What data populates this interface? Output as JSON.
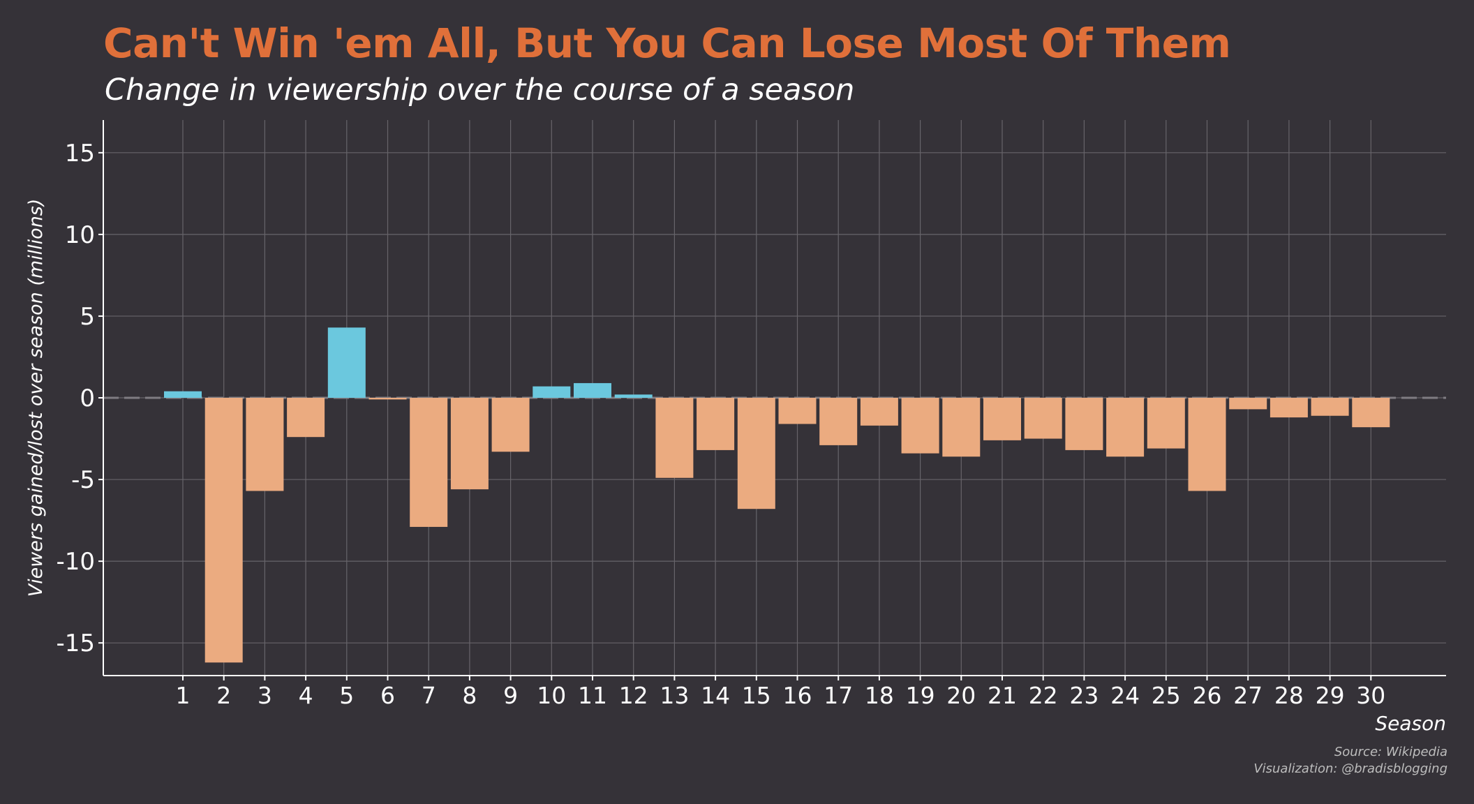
{
  "header": {
    "title": "Can't Win 'em All, But You Can Lose Most Of Them",
    "subtitle": "Change in viewership over the course of a season"
  },
  "footer": {
    "source": "Source: Wikipedia",
    "credit": "Visualization: @bradisblogging"
  },
  "colors": {
    "background": "#353238",
    "title": "#E0703A",
    "positive": "#6BC8DE",
    "negative": "#EBAB80",
    "grid": "#67646A",
    "axis": "#FFFFFF",
    "zero_line": "#7F7C82"
  },
  "chart_data": {
    "type": "bar",
    "title": "Can't Win 'em All, But You Can Lose Most Of Them",
    "subtitle": "Change in viewership over the course of a season",
    "xlabel": "Season",
    "ylabel": "Viewers gained/lost over season (millions)",
    "ylim": [
      -17,
      17
    ],
    "yticks": [
      15,
      10,
      5,
      0,
      -5,
      -10,
      -15
    ],
    "ytick_labels": [
      "15",
      "10",
      "5",
      "0",
      "-5",
      "-10",
      "-15"
    ],
    "grid": true,
    "categories": [
      "1",
      "2",
      "3",
      "4",
      "5",
      "6",
      "7",
      "8",
      "9",
      "10",
      "11",
      "12",
      "13",
      "14",
      "15",
      "16",
      "17",
      "18",
      "19",
      "20",
      "21",
      "22",
      "23",
      "24",
      "25",
      "26",
      "27",
      "28",
      "29",
      "30"
    ],
    "values": [
      0.4,
      -16.2,
      -5.7,
      -2.4,
      4.3,
      -0.1,
      -7.9,
      -5.6,
      -3.3,
      0.7,
      0.9,
      0.2,
      -4.9,
      -3.2,
      -6.8,
      -1.6,
      -2.9,
      -1.7,
      -3.4,
      -3.6,
      -2.6,
      -2.5,
      -3.2,
      -3.6,
      -3.1,
      -5.7,
      -0.7,
      -1.2,
      -1.1,
      -1.8
    ]
  }
}
